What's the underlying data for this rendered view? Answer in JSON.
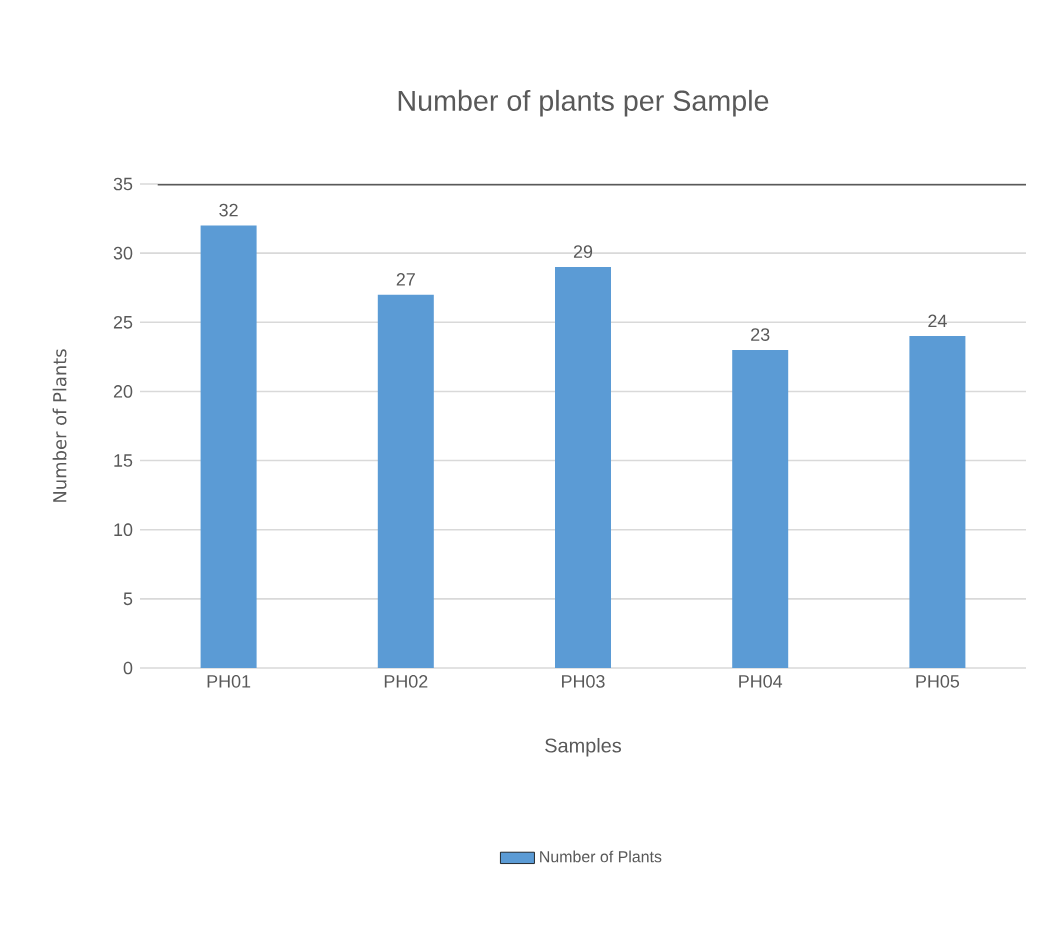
{
  "chart_data": {
    "type": "bar",
    "title": "Number of plants per Sample",
    "xlabel": "Samples",
    "ylabel": "Number of Plants",
    "categories": [
      "PH01",
      "PH02",
      "PH03",
      "PH04",
      "PH05"
    ],
    "series": [
      {
        "name": "Number of Plants",
        "color": "#5b9bd5",
        "values": [
          32,
          27,
          29,
          23,
          24
        ]
      }
    ],
    "data_labels": true,
    "ylim": [
      0,
      35
    ],
    "yticks": [
      0,
      5,
      10,
      15,
      20,
      25,
      30,
      35
    ],
    "grid": "y",
    "legend": "bottom",
    "ref_lines": [
      {
        "axis": "y",
        "value": 35,
        "color": "#595959"
      }
    ]
  }
}
